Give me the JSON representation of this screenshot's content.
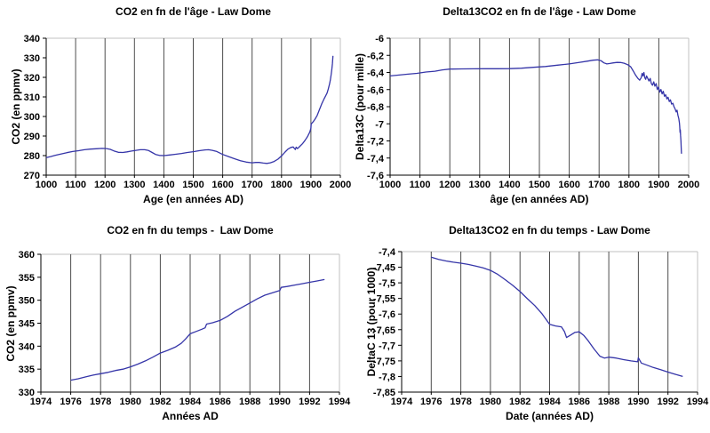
{
  "colors": {
    "line": "#3535a8",
    "grid": "#4d4d4d",
    "plot_border": "#c0c0c0",
    "axis": "#000000",
    "text": "#000000",
    "background": "#ffffff"
  },
  "chart_data": [
    {
      "type": "line",
      "title": "CO2 en fn de l'âge - Law Dome",
      "xlabel": "Age (en années AD)",
      "ylabel": "CO2 (en ppmv)",
      "xlim": [
        1000,
        2000
      ],
      "ylim": [
        270,
        340
      ],
      "grid": "vertical-major-only",
      "legend": "none",
      "xtick_values": [
        1000,
        1100,
        1200,
        1300,
        1400,
        1500,
        1600,
        1700,
        1800,
        1900,
        2000
      ],
      "xtick_labels": [
        "1000",
        "1100",
        "1200",
        "1300",
        "1400",
        "1500",
        "1600",
        "1700",
        "1800",
        "1900",
        "2000"
      ],
      "ytick_values": [
        340,
        330,
        320,
        310,
        300,
        290,
        280,
        270
      ],
      "ytick_labels": [
        "340",
        "330",
        "320",
        "310",
        "300",
        "290",
        "280",
        "270"
      ],
      "points": [
        [
          1000,
          279
        ],
        [
          1015,
          279.5
        ],
        [
          1030,
          280.1
        ],
        [
          1050,
          280.8
        ],
        [
          1070,
          281.5
        ],
        [
          1090,
          282.1
        ],
        [
          1110,
          282.5
        ],
        [
          1130,
          283
        ],
        [
          1150,
          283.3
        ],
        [
          1170,
          283.5
        ],
        [
          1190,
          283.7
        ],
        [
          1205,
          283.6
        ],
        [
          1218,
          283.2
        ],
        [
          1230,
          282.4
        ],
        [
          1245,
          281.7
        ],
        [
          1260,
          281.6
        ],
        [
          1275,
          281.9
        ],
        [
          1290,
          282.3
        ],
        [
          1305,
          282.7
        ],
        [
          1320,
          283
        ],
        [
          1335,
          283
        ],
        [
          1348,
          282.6
        ],
        [
          1360,
          281.6
        ],
        [
          1372,
          280.6
        ],
        [
          1385,
          280.1
        ],
        [
          1400,
          280
        ],
        [
          1420,
          280.3
        ],
        [
          1440,
          280.7
        ],
        [
          1460,
          281.1
        ],
        [
          1480,
          281.6
        ],
        [
          1500,
          282
        ],
        [
          1520,
          282.5
        ],
        [
          1540,
          282.9
        ],
        [
          1552,
          283
        ],
        [
          1565,
          282.7
        ],
        [
          1580,
          282.1
        ],
        [
          1600,
          280.6
        ],
        [
          1620,
          279.5
        ],
        [
          1640,
          278.4
        ],
        [
          1660,
          277.4
        ],
        [
          1680,
          276.7
        ],
        [
          1700,
          276.3
        ],
        [
          1712,
          276.5
        ],
        [
          1724,
          276.5
        ],
        [
          1738,
          276.2
        ],
        [
          1750,
          276
        ],
        [
          1762,
          276.3
        ],
        [
          1775,
          277
        ],
        [
          1788,
          278.2
        ],
        [
          1800,
          279.8
        ],
        [
          1812,
          281.8
        ],
        [
          1822,
          283.3
        ],
        [
          1832,
          284.2
        ],
        [
          1840,
          284.4
        ],
        [
          1844,
          283.6
        ],
        [
          1847,
          283.1
        ],
        [
          1850,
          284.3
        ],
        [
          1854,
          283.6
        ],
        [
          1858,
          284.1
        ],
        [
          1864,
          285
        ],
        [
          1872,
          286.2
        ],
        [
          1880,
          287.8
        ],
        [
          1888,
          289.6
        ],
        [
          1896,
          292
        ],
        [
          1900,
          294
        ],
        [
          1901,
          296.2
        ],
        [
          1906,
          297
        ],
        [
          1913,
          298.4
        ],
        [
          1921,
          300.5
        ],
        [
          1929,
          303.5
        ],
        [
          1937,
          306.5
        ],
        [
          1944,
          308.8
        ],
        [
          1950,
          310.5
        ],
        [
          1955,
          312
        ],
        [
          1959,
          314
        ],
        [
          1963,
          316.5
        ],
        [
          1966,
          318.5
        ],
        [
          1969,
          321.5
        ],
        [
          1971,
          324
        ],
        [
          1973,
          327
        ],
        [
          1975,
          331
        ]
      ]
    },
    {
      "type": "line",
      "title": "Delta13CO2 en fn de l'âge - Law Dome",
      "xlabel": "âge (en années AD)",
      "ylabel": "Delta13C (pour mille)",
      "xlim": [
        1000,
        2000
      ],
      "ylim": [
        -7.6,
        -6
      ],
      "grid": "vertical-major-only",
      "legend": "none",
      "xtick_values": [
        1000,
        1100,
        1200,
        1300,
        1400,
        1500,
        1600,
        1700,
        1800,
        1900,
        2000
      ],
      "xtick_labels": [
        "1000",
        "1100",
        "1200",
        "1300",
        "1400",
        "1500",
        "1600",
        "1700",
        "1800",
        "1900",
        "2000"
      ],
      "ytick_values": [
        -6,
        -6.2,
        -6.4,
        -6.6,
        -6.8,
        -7,
        -7.2,
        -7.4,
        -7.6
      ],
      "ytick_labels": [
        "-6",
        "-6,2",
        "-6,4",
        "-6,6",
        "-6,8",
        "-7",
        "-7,2",
        "-7,4",
        "-7,6"
      ],
      "points": [
        [
          1000,
          -6.44
        ],
        [
          1030,
          -6.43
        ],
        [
          1060,
          -6.42
        ],
        [
          1090,
          -6.41
        ],
        [
          1120,
          -6.395
        ],
        [
          1150,
          -6.385
        ],
        [
          1175,
          -6.37
        ],
        [
          1200,
          -6.36
        ],
        [
          1240,
          -6.358
        ],
        [
          1280,
          -6.357
        ],
        [
          1320,
          -6.356
        ],
        [
          1360,
          -6.356
        ],
        [
          1400,
          -6.355
        ],
        [
          1440,
          -6.35
        ],
        [
          1480,
          -6.34
        ],
        [
          1520,
          -6.33
        ],
        [
          1560,
          -6.315
        ],
        [
          1600,
          -6.3
        ],
        [
          1630,
          -6.285
        ],
        [
          1660,
          -6.268
        ],
        [
          1680,
          -6.257
        ],
        [
          1695,
          -6.252
        ],
        [
          1706,
          -6.262
        ],
        [
          1716,
          -6.288
        ],
        [
          1726,
          -6.3
        ],
        [
          1736,
          -6.295
        ],
        [
          1748,
          -6.288
        ],
        [
          1760,
          -6.283
        ],
        [
          1772,
          -6.284
        ],
        [
          1784,
          -6.292
        ],
        [
          1796,
          -6.31
        ],
        [
          1806,
          -6.335
        ],
        [
          1814,
          -6.38
        ],
        [
          1822,
          -6.43
        ],
        [
          1830,
          -6.47
        ],
        [
          1836,
          -6.49
        ],
        [
          1841,
          -6.46
        ],
        [
          1844,
          -6.41
        ],
        [
          1847,
          -6.44
        ],
        [
          1850,
          -6.4
        ],
        [
          1853,
          -6.46
        ],
        [
          1856,
          -6.48
        ],
        [
          1859,
          -6.44
        ],
        [
          1863,
          -6.47
        ],
        [
          1867,
          -6.5
        ],
        [
          1871,
          -6.47
        ],
        [
          1875,
          -6.53
        ],
        [
          1879,
          -6.55
        ],
        [
          1883,
          -6.51
        ],
        [
          1887,
          -6.56
        ],
        [
          1891,
          -6.53
        ],
        [
          1895,
          -6.6
        ],
        [
          1899,
          -6.57
        ],
        [
          1903,
          -6.63
        ],
        [
          1907,
          -6.6
        ],
        [
          1911,
          -6.65
        ],
        [
          1915,
          -6.62
        ],
        [
          1919,
          -6.68
        ],
        [
          1923,
          -6.66
        ],
        [
          1927,
          -6.71
        ],
        [
          1931,
          -6.69
        ],
        [
          1935,
          -6.74
        ],
        [
          1939,
          -6.72
        ],
        [
          1943,
          -6.77
        ],
        [
          1947,
          -6.76
        ],
        [
          1951,
          -6.8
        ],
        [
          1955,
          -6.83
        ],
        [
          1958,
          -6.86
        ],
        [
          1961,
          -6.84
        ],
        [
          1964,
          -6.9
        ],
        [
          1967,
          -6.94
        ],
        [
          1969,
          -6.99
        ],
        [
          1970,
          -7.03
        ],
        [
          1971,
          -7.1
        ],
        [
          1972,
          -7.07
        ],
        [
          1973,
          -7.14
        ],
        [
          1974,
          -7.2
        ],
        [
          1975,
          -7.28
        ],
        [
          1976,
          -7.35
        ]
      ]
    },
    {
      "type": "line",
      "title": "CO2 en fn du temps -  Law Dome",
      "xlabel": "Années AD",
      "ylabel": "CO2 (en ppmv)",
      "xlim": [
        1974,
        1994
      ],
      "ylim": [
        330,
        360
      ],
      "grid": "vertical-major-only",
      "legend": "none",
      "xtick_values": [
        1974,
        1976,
        1978,
        1980,
        1982,
        1984,
        1986,
        1988,
        1990,
        1992,
        1994
      ],
      "xtick_labels": [
        "1974",
        "1976",
        "1978",
        "1980",
        "1982",
        "1984",
        "1986",
        "1988",
        "1990",
        "1992",
        "1994"
      ],
      "ytick_values": [
        360,
        355,
        350,
        345,
        340,
        335,
        330
      ],
      "ytick_labels": [
        "360",
        "355",
        "350",
        "345",
        "340",
        "335",
        "330"
      ],
      "points": [
        [
          1976,
          332.6
        ],
        [
          1976.5,
          332.9
        ],
        [
          1977,
          333.3
        ],
        [
          1977.5,
          333.7
        ],
        [
          1978,
          334
        ],
        [
          1978.5,
          334.3
        ],
        [
          1979,
          334.7
        ],
        [
          1979.5,
          335
        ],
        [
          1980,
          335.5
        ],
        [
          1980.5,
          336.1
        ],
        [
          1981,
          336.8
        ],
        [
          1981.5,
          337.6
        ],
        [
          1982,
          338.5
        ],
        [
          1982.5,
          339.1
        ],
        [
          1983,
          339.8
        ],
        [
          1983.4,
          340.6
        ],
        [
          1983.7,
          341.6
        ],
        [
          1984,
          342.7
        ],
        [
          1984.4,
          343.2
        ],
        [
          1984.8,
          343.7
        ],
        [
          1985,
          344
        ],
        [
          1985.1,
          344.8
        ],
        [
          1985.5,
          345.1
        ],
        [
          1986,
          345.6
        ],
        [
          1986.5,
          346.5
        ],
        [
          1987,
          347.6
        ],
        [
          1987.5,
          348.5
        ],
        [
          1988,
          349.4
        ],
        [
          1988.5,
          350.3
        ],
        [
          1989,
          351.1
        ],
        [
          1989.5,
          351.6
        ],
        [
          1990,
          352.1
        ],
        [
          1990.1,
          352.8
        ],
        [
          1990.5,
          353
        ],
        [
          1991,
          353.3
        ],
        [
          1991.5,
          353.6
        ],
        [
          1992,
          353.9
        ],
        [
          1992.5,
          354.2
        ],
        [
          1993,
          354.5
        ]
      ]
    },
    {
      "type": "line",
      "title": "Delta13CO2 en fn du temps - Law Dome",
      "xlabel": "Date (années AD)",
      "ylabel": "DeltaC 13 (pour 1000)",
      "xlim": [
        1974,
        1994
      ],
      "ylim": [
        -7.85,
        -7.4
      ],
      "grid": "vertical-major-only",
      "legend": "none",
      "xtick_values": [
        1974,
        1976,
        1978,
        1980,
        1982,
        1984,
        1986,
        1988,
        1990,
        1992,
        1994
      ],
      "xtick_labels": [
        "1974",
        "1976",
        "1978",
        "1980",
        "1982",
        "1984",
        "1986",
        "1988",
        "1990",
        "1992",
        "1994"
      ],
      "ytick_values": [
        -7.4,
        -7.45,
        -7.5,
        -7.55,
        -7.6,
        -7.65,
        -7.7,
        -7.75,
        -7.8,
        -7.85
      ],
      "ytick_labels": [
        "-7,4",
        "-7,45",
        "-7,5",
        "-7,55",
        "-7,6",
        "-7,65",
        "-7,7",
        "-7,75",
        "-7,8",
        "-7,85"
      ],
      "points": [
        [
          1976,
          -7.418
        ],
        [
          1976.5,
          -7.425
        ],
        [
          1977,
          -7.43
        ],
        [
          1977.5,
          -7.434
        ],
        [
          1978,
          -7.437
        ],
        [
          1978.5,
          -7.441
        ],
        [
          1979,
          -7.446
        ],
        [
          1979.5,
          -7.452
        ],
        [
          1980,
          -7.46
        ],
        [
          1980.5,
          -7.473
        ],
        [
          1981,
          -7.49
        ],
        [
          1981.5,
          -7.508
        ],
        [
          1982,
          -7.528
        ],
        [
          1982.5,
          -7.551
        ],
        [
          1983,
          -7.573
        ],
        [
          1983.5,
          -7.6
        ],
        [
          1984,
          -7.633
        ],
        [
          1984.4,
          -7.638
        ],
        [
          1984.8,
          -7.641
        ],
        [
          1985,
          -7.656
        ],
        [
          1985.15,
          -7.675
        ],
        [
          1985.4,
          -7.668
        ],
        [
          1985.7,
          -7.659
        ],
        [
          1986,
          -7.657
        ],
        [
          1986.3,
          -7.668
        ],
        [
          1986.6,
          -7.685
        ],
        [
          1987,
          -7.712
        ],
        [
          1987.4,
          -7.735
        ],
        [
          1987.7,
          -7.741
        ],
        [
          1988,
          -7.738
        ],
        [
          1988.5,
          -7.741
        ],
        [
          1989,
          -7.746
        ],
        [
          1989.5,
          -7.75
        ],
        [
          1989.95,
          -7.753
        ],
        [
          1990,
          -7.74
        ],
        [
          1990.2,
          -7.757
        ],
        [
          1990.6,
          -7.764
        ],
        [
          1991,
          -7.771
        ],
        [
          1991.5,
          -7.778
        ],
        [
          1992,
          -7.786
        ],
        [
          1992.5,
          -7.793
        ],
        [
          1993,
          -7.8
        ]
      ]
    }
  ]
}
